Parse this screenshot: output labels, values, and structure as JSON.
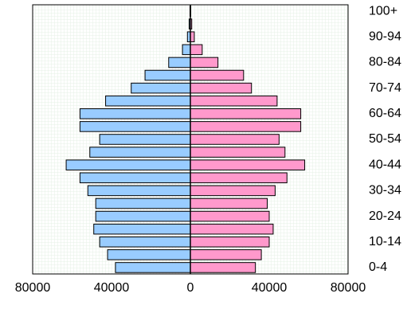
{
  "chart_data": {
    "type": "bar",
    "orientation": "horizontal",
    "layout": "population-pyramid",
    "grid": true,
    "xlim": [
      -80000,
      80000
    ],
    "x_ticks": [
      -80000,
      -40000,
      0,
      40000,
      80000
    ],
    "x_tick_labels": [
      "80000",
      "40000",
      "0",
      "40000",
      "80000"
    ],
    "categories": [
      "0-4",
      "5-9",
      "10-14",
      "15-19",
      "20-24",
      "25-29",
      "30-34",
      "35-39",
      "40-44",
      "45-49",
      "50-54",
      "55-59",
      "60-64",
      "65-69",
      "70-74",
      "75-79",
      "80-84",
      "85-89",
      "90-94",
      "95-99",
      "100+"
    ],
    "category_labels_shown": [
      "0-4",
      "10-14",
      "20-24",
      "30-34",
      "40-44",
      "50-54",
      "60-64",
      "70-74",
      "80-84",
      "90-94",
      "100+"
    ],
    "series": [
      {
        "side": "left",
        "color": "#99ccff",
        "values": [
          38000,
          42000,
          46000,
          49000,
          48000,
          48000,
          52000,
          56000,
          63000,
          51000,
          46000,
          56000,
          56000,
          43000,
          30000,
          23000,
          11000,
          4000,
          1500,
          600,
          200
        ]
      },
      {
        "side": "right",
        "color": "#ff99cc",
        "values": [
          33000,
          36000,
          40000,
          42000,
          40000,
          39000,
          43000,
          49000,
          58000,
          48000,
          45000,
          56000,
          56000,
          44000,
          31000,
          27000,
          14000,
          6000,
          2000,
          700,
          200
        ]
      }
    ]
  }
}
